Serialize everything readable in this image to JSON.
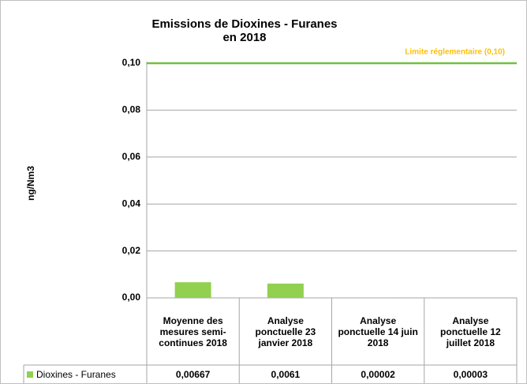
{
  "chart_data": {
    "type": "bar",
    "title": "Emissions de Dioxines - Furanes en 2018",
    "ylabel": "ng/Nm3",
    "categories": [
      "Moyenne des mesures semi-continues 2018",
      "Analyse ponctuelle 23 janvier 2018",
      "Analyse ponctuelle 14 juin 2018",
      "Analyse ponctuelle 12 juillet 2018"
    ],
    "series": [
      {
        "name": "Dioxines - Furanes",
        "color": "#92d050",
        "values": [
          0.00667,
          0.0061,
          2e-05,
          3e-05
        ],
        "value_labels": [
          "0,00667",
          "0,0061",
          "0,00002",
          "0,00003"
        ]
      }
    ],
    "ylim": [
      0,
      0.1
    ],
    "yticks": [
      {
        "value": 0,
        "label": "0,00"
      },
      {
        "value": 0.02,
        "label": "0,02"
      },
      {
        "value": 0.04,
        "label": "0,04"
      },
      {
        "value": 0.06,
        "label": "0,06"
      },
      {
        "value": 0.08,
        "label": "0,08"
      },
      {
        "value": 0.1,
        "label": "0,10"
      }
    ],
    "grid": true,
    "limit": {
      "value": 0.1,
      "label": "Limite réglementaire (0,10)",
      "color": "#70c03c",
      "label_color": "#ffc000"
    }
  }
}
